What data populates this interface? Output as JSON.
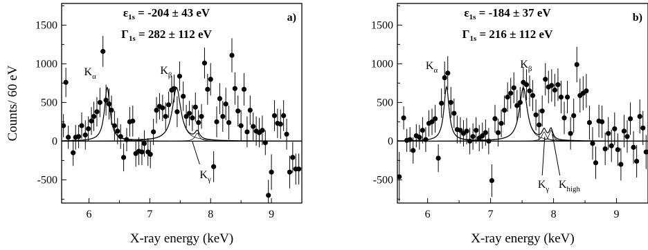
{
  "chart_data": [
    {
      "type": "scatter",
      "panel_label": "a)",
      "xlabel": "X-ray energy (keV)",
      "ylabel": "Counts/ 60 eV",
      "xlim": [
        5.55,
        9.5
      ],
      "ylim": [
        -800,
        1780
      ],
      "xticks": [
        "6",
        "7",
        "8",
        "9"
      ],
      "yticks": [
        "1500",
        "1000",
        "500",
        "0",
        "-500"
      ],
      "annotation_line1": {
        "sym": "ε",
        "sub": "1s",
        "val": " = -204 ± 43 eV"
      },
      "annotation_line2": {
        "sym": "Γ",
        "sub": "1s",
        "val": " = 282 ± 112 eV"
      },
      "peak_labels": [
        {
          "main": "K",
          "sub": "α",
          "energy": 6.4
        },
        {
          "main": "K",
          "sub": "β",
          "energy": 7.46
        },
        {
          "main": "K",
          "sub": "γ",
          "energy": 7.8
        }
      ],
      "peaks": [
        {
          "center": 6.3,
          "height": 690,
          "width": 0.11
        },
        {
          "center": 7.44,
          "height": 690,
          "width": 0.17
        },
        {
          "center": 7.78,
          "height": 100,
          "width": 0.09
        }
      ],
      "x": [
        5.58,
        5.62,
        5.66,
        5.74,
        5.78,
        5.83,
        5.88,
        5.94,
        5.99,
        6.04,
        6.08,
        6.13,
        6.18,
        6.23,
        6.28,
        6.33,
        6.37,
        6.42,
        6.47,
        6.52,
        6.57,
        6.62,
        6.67,
        6.72,
        6.77,
        6.82,
        6.87,
        6.91,
        6.97,
        7.01,
        7.06,
        7.11,
        7.16,
        7.21,
        7.26,
        7.31,
        7.36,
        7.4,
        7.45,
        7.49,
        7.55,
        7.6,
        7.65,
        7.7,
        7.75,
        7.8,
        7.85,
        7.9,
        7.95,
        8.0,
        8.05,
        8.1,
        8.15,
        8.2,
        8.25,
        8.3,
        8.35,
        8.4,
        8.45,
        8.5,
        8.55,
        8.6,
        8.65,
        8.7,
        8.75,
        8.8,
        8.85,
        8.9,
        8.95,
        9.0,
        9.05,
        9.1,
        9.15,
        9.2,
        9.25,
        9.3,
        9.35,
        9.4,
        9.45
      ],
      "y": [
        200,
        760,
        50,
        -150,
        50,
        60,
        200,
        80,
        160,
        260,
        320,
        380,
        500,
        1160,
        530,
        480,
        400,
        200,
        130,
        60,
        -210,
        20,
        250,
        260,
        -160,
        -130,
        -140,
        -30,
        -140,
        -170,
        120,
        400,
        450,
        430,
        320,
        470,
        660,
        680,
        380,
        840,
        580,
        320,
        360,
        300,
        440,
        240,
        320,
        1010,
        670,
        800,
        -330,
        250,
        550,
        320,
        480,
        240,
        1110,
        680,
        390,
        200,
        670,
        120,
        400,
        190,
        130,
        110,
        140,
        -20,
        -700,
        -400,
        330,
        230,
        220,
        330,
        90,
        -400,
        -210,
        -360,
        -360
      ],
      "err": [
        150,
        190,
        150,
        170,
        160,
        150,
        170,
        190,
        160,
        180,
        190,
        190,
        190,
        200,
        200,
        200,
        190,
        190,
        170,
        160,
        180,
        150,
        190,
        200,
        170,
        180,
        170,
        170,
        180,
        180,
        170,
        170,
        170,
        170,
        180,
        170,
        180,
        180,
        200,
        190,
        190,
        150,
        160,
        170,
        190,
        160,
        160,
        200,
        200,
        210,
        200,
        200,
        200,
        200,
        210,
        220,
        220,
        210,
        200,
        200,
        210,
        200,
        190,
        180,
        190,
        190,
        190,
        160,
        200,
        230,
        200,
        190,
        190,
        200,
        200,
        210,
        200,
        200,
        200
      ]
    },
    {
      "type": "scatter",
      "panel_label": "b)",
      "xlabel": "X-ray energy (keV)",
      "ylabel": "",
      "xlim": [
        5.52,
        9.5
      ],
      "ylim": [
        -800,
        1780
      ],
      "xticks": [
        "6",
        "7",
        "8",
        "9"
      ],
      "yticks": [
        "1500",
        "1000",
        "500",
        "0",
        "-500"
      ],
      "annotation_line1": {
        "sym": "ε",
        "sub": "1s",
        "val": " = -184 ± 37 eV"
      },
      "annotation_line2": {
        "sym": "Γ",
        "sub": "1s",
        "val": " = 216 ± 112 eV"
      },
      "peak_labels": [
        {
          "main": "K",
          "sub": "α",
          "energy": 6.3
        },
        {
          "main": "K",
          "sub": "β",
          "energy": 7.55
        },
        {
          "main": "K",
          "sub": "γ",
          "energy": 7.85
        },
        {
          "main": "K",
          "sub": "high",
          "energy": 7.95
        }
      ],
      "peaks": [
        {
          "center": 6.3,
          "height": 700,
          "width": 0.1
        },
        {
          "center": 7.52,
          "height": 690,
          "width": 0.15
        },
        {
          "center": 7.85,
          "height": 120,
          "width": 0.08
        },
        {
          "center": 7.96,
          "height": 140,
          "width": 0.07
        }
      ],
      "x": [
        5.55,
        5.62,
        5.67,
        5.72,
        5.77,
        5.82,
        5.87,
        5.92,
        5.97,
        6.02,
        6.07,
        6.12,
        6.17,
        6.22,
        6.27,
        6.32,
        6.37,
        6.42,
        6.47,
        6.52,
        6.57,
        6.62,
        6.67,
        6.72,
        6.77,
        6.82,
        6.87,
        6.92,
        6.97,
        7.02,
        7.07,
        7.12,
        7.17,
        7.22,
        7.27,
        7.32,
        7.37,
        7.42,
        7.47,
        7.52,
        7.57,
        7.62,
        7.67,
        7.72,
        7.77,
        7.82,
        7.87,
        7.92,
        7.97,
        8.02,
        8.07,
        8.12,
        8.17,
        8.22,
        8.27,
        8.32,
        8.37,
        8.42,
        8.47,
        8.52,
        8.57,
        8.62,
        8.67,
        8.72,
        8.77,
        8.82,
        8.87,
        8.92,
        8.97,
        9.02,
        9.07,
        9.12,
        9.17,
        9.22,
        9.27,
        9.32,
        9.37,
        9.42,
        9.47
      ],
      "y": [
        -460,
        300,
        10,
        20,
        -120,
        70,
        50,
        140,
        20,
        230,
        250,
        290,
        -220,
        490,
        820,
        880,
        500,
        360,
        150,
        140,
        100,
        130,
        0,
        60,
        140,
        40,
        70,
        110,
        0,
        -510,
        290,
        110,
        230,
        400,
        570,
        620,
        690,
        460,
        500,
        760,
        730,
        650,
        590,
        340,
        210,
        390,
        800,
        700,
        720,
        660,
        730,
        570,
        300,
        570,
        100,
        330,
        990,
        590,
        620,
        650,
        240,
        -30,
        -280,
        260,
        250,
        -100,
        100,
        -60,
        160,
        -110,
        -300,
        130,
        60,
        290,
        -80,
        -260,
        320,
        170,
        -140
      ],
      "err": [
        320,
        150,
        150,
        160,
        170,
        150,
        160,
        170,
        160,
        170,
        170,
        180,
        180,
        190,
        210,
        220,
        200,
        190,
        180,
        170,
        170,
        170,
        170,
        170,
        170,
        170,
        170,
        170,
        170,
        210,
        180,
        180,
        180,
        190,
        190,
        200,
        200,
        200,
        200,
        200,
        200,
        200,
        200,
        200,
        200,
        200,
        210,
        210,
        210,
        210,
        210,
        210,
        210,
        210,
        210,
        220,
        230,
        220,
        220,
        220,
        220,
        210,
        210,
        210,
        210,
        210,
        210,
        210,
        210,
        210,
        210,
        210,
        210,
        210,
        210,
        210,
        220,
        220,
        220
      ]
    }
  ]
}
